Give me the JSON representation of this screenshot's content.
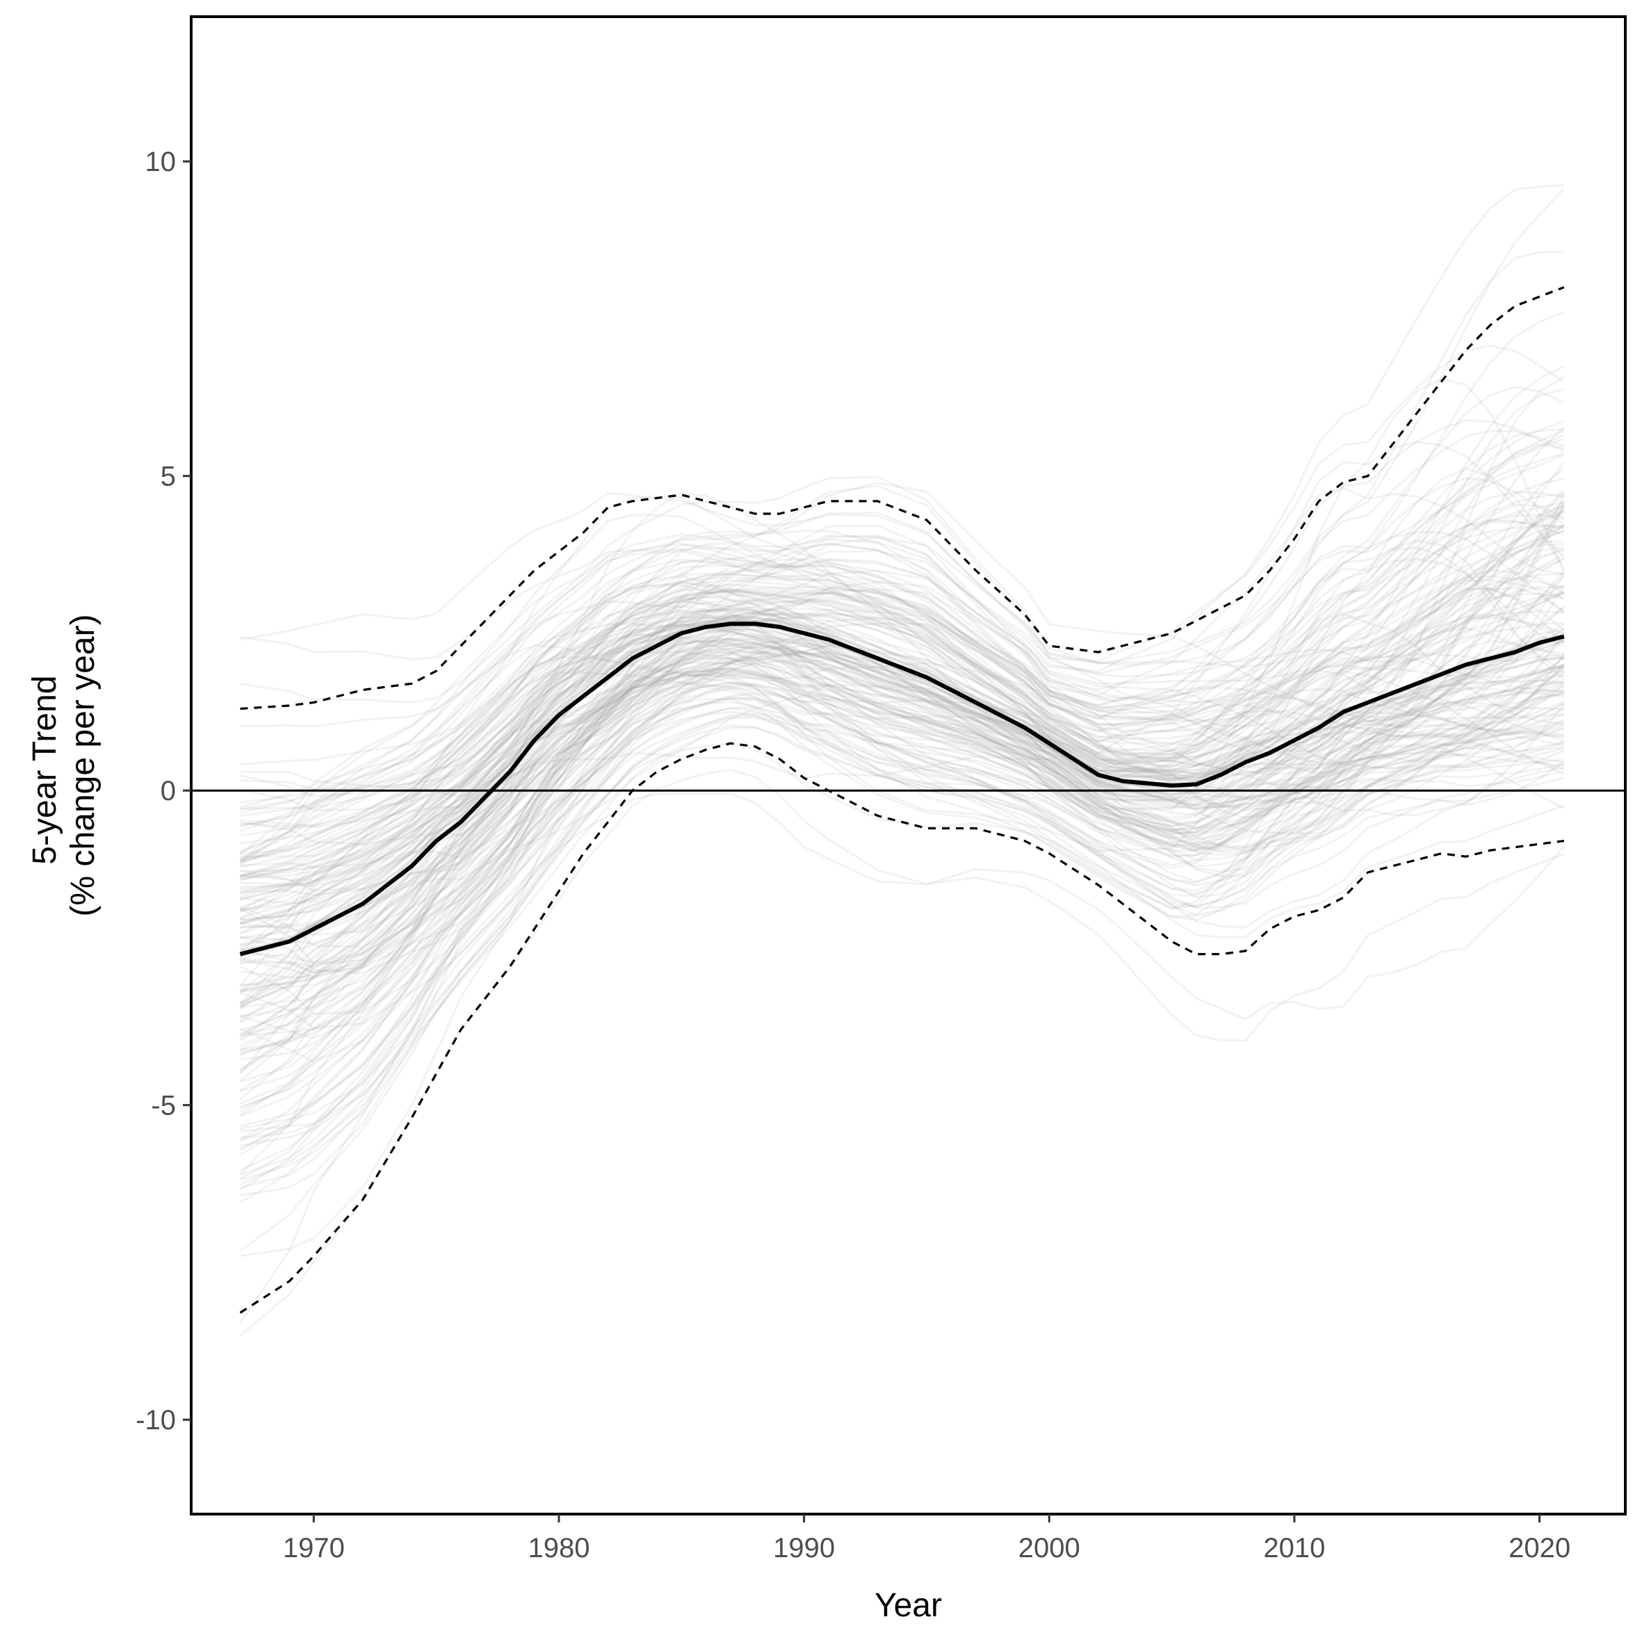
{
  "chart_data": {
    "type": "line",
    "xlabel": "Year",
    "ylabel_lines": [
      "5-year Trend",
      "(% change per year)"
    ],
    "xlim": [
      1965,
      2023.5
    ],
    "ylim": [
      -11.5,
      12.3
    ],
    "x_ticks": [
      1970,
      1980,
      1990,
      2000,
      2010,
      2020
    ],
    "x_tick_labels": [
      "1970",
      "1980",
      "1990",
      "2000",
      "2010",
      "2020"
    ],
    "y_ticks": [
      -10,
      -5,
      0,
      5,
      10
    ],
    "y_tick_labels": [
      "-10",
      "-5",
      "0",
      "5",
      "10"
    ],
    "reference_line_y": 0,
    "grid": false,
    "legend": "none",
    "x": [
      1967,
      1969,
      1970,
      1972,
      1974,
      1975,
      1976,
      1978,
      1979,
      1980,
      1981,
      1982,
      1983,
      1984,
      1985,
      1986,
      1987,
      1988,
      1989,
      1990,
      1991,
      1993,
      1995,
      1997,
      1999,
      2000,
      2002,
      2003,
      2005,
      2006,
      2007,
      2008,
      2009,
      2010,
      2011,
      2012,
      2013,
      2014,
      2015,
      2016,
      2017,
      2018,
      2019,
      2020,
      2021
    ],
    "series": [
      {
        "role": "median",
        "style": "solid",
        "values": [
          -2.6,
          -2.4,
          -2.2,
          -1.8,
          -1.2,
          -0.8,
          -0.5,
          0.3,
          0.8,
          1.2,
          1.5,
          1.8,
          2.1,
          2.3,
          2.5,
          2.6,
          2.65,
          2.65,
          2.6,
          2.5,
          2.4,
          2.1,
          1.8,
          1.4,
          1.0,
          0.75,
          0.25,
          0.15,
          0.08,
          0.1,
          0.25,
          0.45,
          0.6,
          0.8,
          1.0,
          1.25,
          1.4,
          1.55,
          1.7,
          1.85,
          2.0,
          2.1,
          2.2,
          2.35,
          2.45
        ]
      },
      {
        "role": "upper",
        "style": "dashed",
        "values": [
          1.3,
          1.35,
          1.4,
          1.6,
          1.7,
          1.9,
          2.3,
          3.1,
          3.5,
          3.8,
          4.1,
          4.5,
          4.6,
          4.65,
          4.7,
          4.6,
          4.5,
          4.4,
          4.4,
          4.5,
          4.6,
          4.6,
          4.3,
          3.5,
          2.8,
          2.3,
          2.2,
          2.3,
          2.5,
          2.7,
          2.9,
          3.1,
          3.5,
          4.0,
          4.6,
          4.9,
          5.0,
          5.5,
          6.0,
          6.5,
          7.0,
          7.4,
          7.7,
          7.85,
          8.0
        ]
      },
      {
        "role": "lower",
        "style": "dashed",
        "values": [
          -8.3,
          -7.8,
          -7.4,
          -6.5,
          -5.2,
          -4.5,
          -3.8,
          -2.8,
          -2.2,
          -1.6,
          -1.0,
          -0.5,
          0.0,
          0.3,
          0.5,
          0.65,
          0.75,
          0.7,
          0.5,
          0.2,
          0.0,
          -0.4,
          -0.6,
          -0.6,
          -0.8,
          -1.0,
          -1.5,
          -1.8,
          -2.4,
          -2.6,
          -2.6,
          -2.55,
          -2.2,
          -2.0,
          -1.9,
          -1.7,
          -1.3,
          -1.2,
          -1.1,
          -1.0,
          -1.05,
          -0.95,
          -0.9,
          -0.85,
          -0.8
        ]
      }
    ],
    "spaghetti": {
      "count": 180,
      "color": "#9a9a9a",
      "opacity": 0.13
    }
  }
}
